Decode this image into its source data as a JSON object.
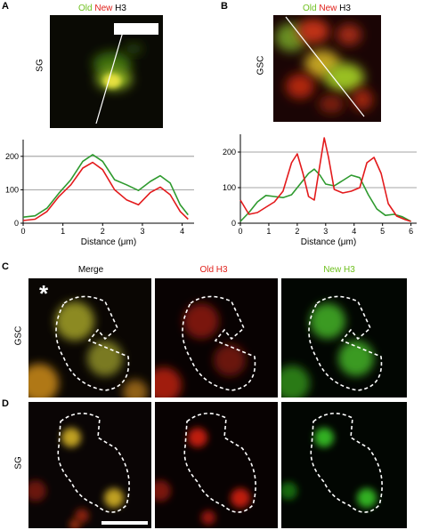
{
  "panelA": {
    "letter": "A",
    "title_old": "Old",
    "title_new": "New",
    "title_h3": "H3",
    "side_label": "SG"
  },
  "panelB": {
    "letter": "B",
    "title_old": "Old",
    "title_new": "New",
    "title_h3": "H3",
    "side_label": "GSC"
  },
  "panelC": {
    "letter": "C",
    "row_label": "GSC",
    "col_merge": "Merge",
    "col_old": "Old H3",
    "col_new": "New H3",
    "asterisk": "*"
  },
  "panelD": {
    "letter": "D",
    "row_label": "SG"
  },
  "colors": {
    "old_green": "#2e9a2e",
    "new_red": "#e31a1c",
    "grid": "#888888"
  },
  "chart_data": [
    {
      "type": "line",
      "panel": "A",
      "xlabel": "Distance (μm)",
      "ylabel": "",
      "xlim": [
        0,
        4.3
      ],
      "ylim": [
        0,
        250
      ],
      "x_ticks": [
        0,
        1,
        2,
        3,
        4
      ],
      "y_ticks": [
        0,
        100,
        200
      ],
      "grid_y": [
        100,
        200
      ],
      "series": [
        {
          "color": "green",
          "x": [
            0,
            0.3,
            0.6,
            0.9,
            1.2,
            1.5,
            1.75,
            2.0,
            2.3,
            2.6,
            2.9,
            3.2,
            3.45,
            3.7,
            3.95,
            4.15
          ],
          "y": [
            18,
            22,
            45,
            90,
            130,
            185,
            205,
            185,
            130,
            115,
            98,
            125,
            142,
            120,
            55,
            25
          ]
        },
        {
          "color": "red",
          "x": [
            0,
            0.3,
            0.6,
            0.9,
            1.2,
            1.5,
            1.75,
            2.0,
            2.3,
            2.6,
            2.9,
            3.2,
            3.45,
            3.7,
            3.95,
            4.15
          ],
          "y": [
            8,
            12,
            35,
            80,
            115,
            165,
            182,
            160,
            100,
            70,
            55,
            92,
            108,
            85,
            35,
            12
          ]
        }
      ]
    },
    {
      "type": "line",
      "panel": "B",
      "xlabel": "Distance (μm)",
      "ylabel": "",
      "xlim": [
        0,
        6.2
      ],
      "ylim": [
        0,
        250
      ],
      "x_ticks": [
        0,
        1,
        2,
        3,
        4,
        5,
        6
      ],
      "y_ticks": [
        0,
        100,
        200
      ],
      "grid_y": [
        100,
        200
      ],
      "series": [
        {
          "color": "green",
          "x": [
            0,
            0.3,
            0.6,
            0.9,
            1.2,
            1.5,
            1.8,
            2.1,
            2.4,
            2.6,
            2.8,
            3.0,
            3.3,
            3.6,
            3.9,
            4.2,
            4.5,
            4.8,
            5.1,
            5.4,
            5.7,
            6.0
          ],
          "y": [
            5,
            30,
            60,
            78,
            75,
            72,
            80,
            110,
            140,
            152,
            135,
            110,
            105,
            120,
            135,
            128,
            80,
            40,
            22,
            25,
            18,
            5
          ]
        },
        {
          "color": "red",
          "x": [
            0,
            0.3,
            0.6,
            0.9,
            1.2,
            1.5,
            1.8,
            2.0,
            2.2,
            2.4,
            2.6,
            2.8,
            2.95,
            3.1,
            3.3,
            3.6,
            3.9,
            4.2,
            4.45,
            4.7,
            4.95,
            5.2,
            5.5,
            5.8,
            6.0
          ],
          "y": [
            65,
            25,
            30,
            45,
            60,
            90,
            170,
            195,
            140,
            75,
            65,
            165,
            240,
            185,
            95,
            85,
            90,
            100,
            170,
            185,
            140,
            55,
            20,
            10,
            5
          ]
        }
      ]
    }
  ]
}
